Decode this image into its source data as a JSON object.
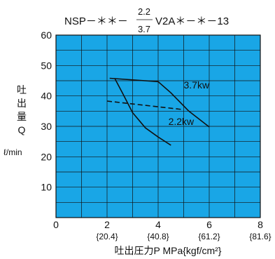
{
  "chart_data": {
    "type": "line",
    "title": {
      "prefix": "NSP－＊＊－",
      "frac_top": "2.2",
      "frac_bottom": "3.7",
      "suffix": "V2A＊－＊－13"
    },
    "xlabel": "吐出圧力P MPa{kgf/cm²}",
    "ylabel": "吐出量Q",
    "ylabel_chars": [
      "吐",
      "出",
      "量",
      "Q"
    ],
    "yunit": "ℓ/min",
    "xlim": [
      0,
      8
    ],
    "ylim": [
      0,
      60
    ],
    "x_ticks": [
      "0",
      "2",
      "4",
      "6",
      "8"
    ],
    "x_ticks_kgf": [
      "{20.4}",
      "{40.8}",
      "{61.2}",
      "{81.6}"
    ],
    "y_ticks": [
      "10",
      "20",
      "30",
      "40",
      "50",
      "60"
    ],
    "grid": true,
    "plot_background": "#19a6e6",
    "series": [
      {
        "name": "3.7kw",
        "style": "solid",
        "points": [
          [
            2.1,
            45.8
          ],
          [
            4.0,
            44.7
          ],
          [
            4.5,
            41.0
          ],
          [
            5.2,
            35.0
          ],
          [
            6.0,
            29.8
          ]
        ]
      },
      {
        "name": "2.2kw",
        "style": "solid",
        "points": [
          [
            2.3,
            45.8
          ],
          [
            2.6,
            41.0
          ],
          [
            3.0,
            34.5
          ],
          [
            3.5,
            29.5
          ],
          [
            4.0,
            26.5
          ],
          [
            4.5,
            23.8
          ]
        ]
      },
      {
        "name": "",
        "style": "dashed",
        "points": [
          [
            2.0,
            38.3
          ],
          [
            5.0,
            35.5
          ]
        ]
      }
    ],
    "annotations": [
      {
        "text": "3.7kw",
        "x": 5.0,
        "y": 42.5
      },
      {
        "text": "2.2kw",
        "x": 4.4,
        "y": 30.5
      }
    ]
  }
}
